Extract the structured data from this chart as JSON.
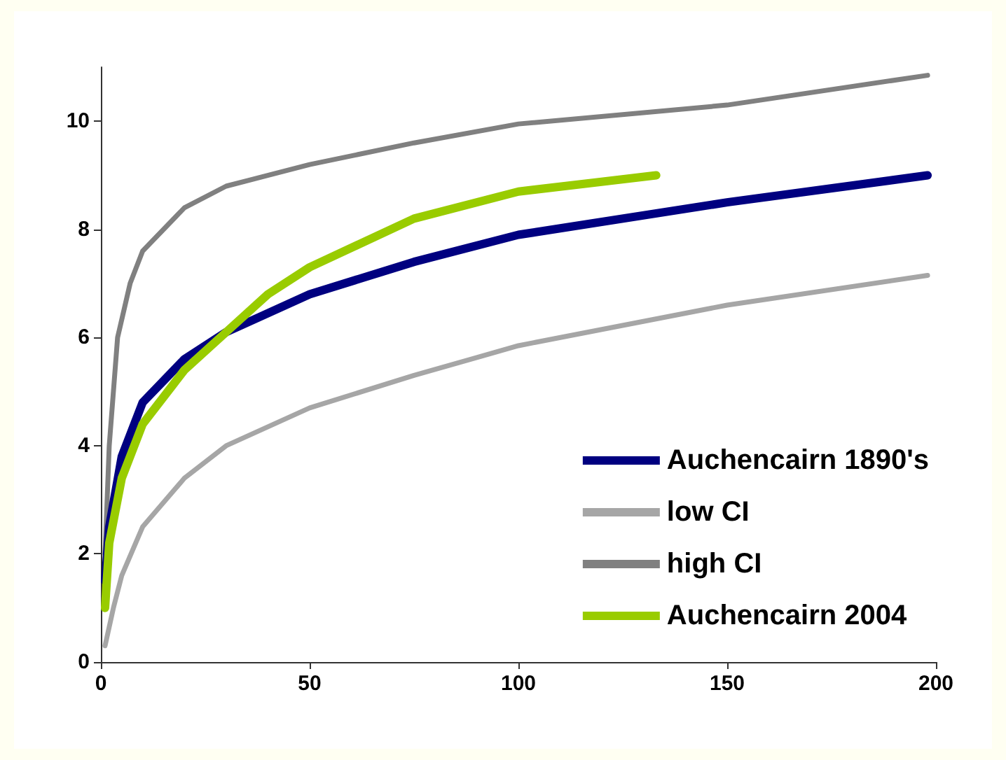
{
  "chart_data": {
    "type": "line",
    "xlim": [
      0,
      200
    ],
    "xticks": [
      0,
      50,
      100,
      150,
      200
    ],
    "ylim": [
      0,
      11
    ],
    "yticks": [
      0,
      2,
      4,
      6,
      8,
      10
    ],
    "grid": false,
    "legend": "bottom right",
    "marker": "none",
    "line_style": "solid",
    "series": [
      {
        "name": "Auchencairn 1890's",
        "color": "#000080",
        "x": [
          1,
          2,
          5,
          10,
          20,
          30,
          50,
          75,
          100,
          150,
          198
        ],
        "values": [
          1.5,
          2.5,
          3.8,
          4.8,
          5.6,
          6.1,
          6.8,
          7.4,
          7.9,
          8.5,
          9.0
        ]
      },
      {
        "name": "low CI",
        "color": "#a6a6a6",
        "x": [
          1,
          3,
          5,
          10,
          20,
          30,
          50,
          75,
          100,
          150,
          198
        ],
        "values": [
          0.3,
          1.0,
          1.6,
          2.5,
          3.4,
          4.0,
          4.7,
          5.3,
          5.85,
          6.6,
          7.15
        ]
      },
      {
        "name": "high CI",
        "color": "#808080",
        "x": [
          1,
          2,
          4,
          7,
          10,
          20,
          30,
          50,
          75,
          100,
          150,
          198
        ],
        "values": [
          2.0,
          4.0,
          6.0,
          7.0,
          7.6,
          8.4,
          8.8,
          9.2,
          9.6,
          9.95,
          10.3,
          10.85
        ]
      },
      {
        "name": "Auchencairn 2004",
        "color": "#99cc00",
        "x": [
          1,
          2,
          5,
          10,
          20,
          30,
          40,
          50,
          75,
          100,
          133
        ],
        "values": [
          1.0,
          2.2,
          3.4,
          4.4,
          5.4,
          6.1,
          6.8,
          7.3,
          8.2,
          8.7,
          9.0
        ]
      }
    ]
  }
}
